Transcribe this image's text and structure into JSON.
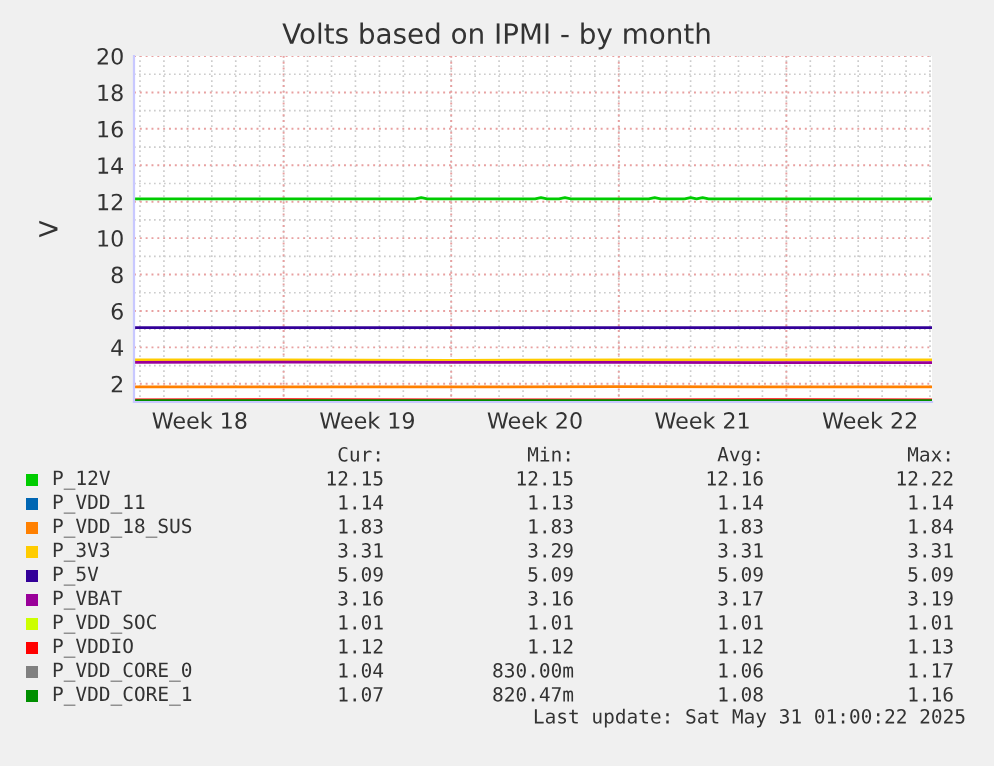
{
  "chart_data": {
    "type": "line",
    "title": "Volts based on IPMI - by month",
    "ylabel": "V",
    "x": [
      "2025-04-28T18:00",
      "2025-05-05T00:00",
      "2025-05-12T00:00",
      "2025-05-19T00:00",
      "2025-05-26T00:00",
      "2025-06-01T02:00"
    ],
    "xlim": [
      "2025-04-28T18:00",
      "2025-06-01T02:00"
    ],
    "xticks": [
      {
        "value": "2025-05-01T12:00",
        "label": "Week 18"
      },
      {
        "value": "2025-05-05T00:00",
        "label": null
      },
      {
        "value": "2025-05-08T12:00",
        "label": "Week 19"
      },
      {
        "value": "2025-05-12T00:00",
        "label": null
      },
      {
        "value": "2025-05-15T12:00",
        "label": "Week 20"
      },
      {
        "value": "2025-05-19T00:00",
        "label": null
      },
      {
        "value": "2025-05-22T12:00",
        "label": "Week 21"
      },
      {
        "value": "2025-05-26T00:00",
        "label": null
      },
      {
        "value": "2025-05-29T12:00",
        "label": "Week 22"
      }
    ],
    "ylim": [
      1,
      20
    ],
    "yticks": [
      2,
      4,
      6,
      8,
      10,
      12,
      14,
      16,
      18,
      20
    ],
    "grid": true,
    "legend": "bottom",
    "marker": "none",
    "line_style": "solid",
    "series": [
      {
        "name": "P_12V",
        "color": "#00cc00",
        "x": [
          "2025-04-28T18:00",
          "2025-05-10T12:00",
          "2025-05-10T18:00",
          "2025-05-11T00:00",
          "2025-05-15T12:00",
          "2025-05-15T18:00",
          "2025-05-16T00:00",
          "2025-05-16T12:00",
          "2025-05-16T18:00",
          "2025-05-17T00:00",
          "2025-05-20T06:00",
          "2025-05-20T12:00",
          "2025-05-20T18:00",
          "2025-05-21T18:00",
          "2025-05-22T00:00",
          "2025-05-22T06:00",
          "2025-05-22T12:00",
          "2025-05-22T18:00",
          "2025-06-01T02:00"
        ],
        "values": [
          12.15,
          12.15,
          12.22,
          12.15,
          12.15,
          12.22,
          12.15,
          12.15,
          12.22,
          12.15,
          12.15,
          12.22,
          12.15,
          12.15,
          12.22,
          12.15,
          12.22,
          12.15,
          12.15
        ]
      },
      {
        "name": "P_VDD_11",
        "color": "#0066b3",
        "values": [
          null,
          null,
          null,
          null,
          null,
          null
        ]
      },
      {
        "name": "P_VDD_18_SUS",
        "color": "#ff8000",
        "values": [
          1.83,
          1.83,
          1.83,
          1.84,
          1.83,
          1.83
        ]
      },
      {
        "name": "P_3V3",
        "color": "#ffcc00",
        "values": [
          3.31,
          3.31,
          3.29,
          3.31,
          3.31,
          3.31
        ]
      },
      {
        "name": "P_5V",
        "color": "#330099",
        "values": [
          5.09,
          5.09,
          5.09,
          5.09,
          5.09,
          5.09
        ]
      },
      {
        "name": "P_VBAT",
        "color": "#990099",
        "values": [
          3.17,
          3.19,
          3.17,
          3.17,
          3.16,
          3.16
        ]
      },
      {
        "name": "P_VDD_SOC",
        "color": "#ccff00",
        "values": [
          null,
          null,
          null,
          null,
          null,
          null
        ]
      },
      {
        "name": "P_VDDIO",
        "color": "#ff0000",
        "values": [
          1.12,
          1.13,
          1.12,
          1.12,
          1.13,
          1.12
        ]
      },
      {
        "name": "P_VDD_CORE_0",
        "color": "#808080",
        "values": [
          null,
          null,
          null,
          null,
          null,
          null
        ]
      },
      {
        "name": "P_VDD_CORE_1",
        "color": "#008f00",
        "values": [
          1.08,
          1.08,
          1.07,
          1.08,
          1.08,
          1.07
        ]
      }
    ],
    "annotations": [
      "Cur:",
      "Min:",
      "Avg:",
      "Max:",
      "12.15",
      "12.15",
      "12.16",
      "12.22",
      "1.14",
      "1.13",
      "1.14",
      "1.14",
      "1.83",
      "1.83",
      "1.83",
      "1.84",
      "3.31",
      "3.29",
      "3.31",
      "3.31",
      "5.09",
      "5.09",
      "5.09",
      "5.09",
      "3.16",
      "3.16",
      "3.17",
      "3.19",
      "1.01",
      "1.01",
      "1.01",
      "1.01",
      "1.12",
      "1.12",
      "1.12",
      "1.13",
      "1.04",
      "830.00m",
      "1.06",
      "1.17",
      "1.07",
      "820.47m",
      "1.08",
      "1.16",
      "Last update: Sat May 31 01:00:22 2025"
    ]
  }
}
